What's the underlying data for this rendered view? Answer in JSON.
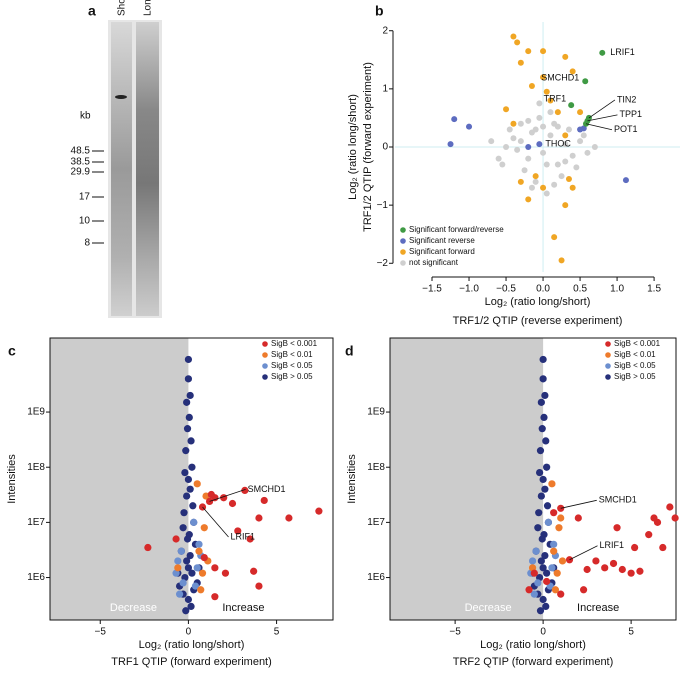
{
  "gel": {
    "panel_label": "a",
    "lanes": [
      "Short",
      "Long"
    ],
    "unit": "kb",
    "markers": [
      "48.5",
      "38.5",
      "29.9",
      "17",
      "10",
      "8"
    ]
  },
  "chart_data": [
    {
      "type": "scatter",
      "panel_label": "b",
      "xlabel": [
        "Log₂ (ratio long/short)",
        "TRF1/2 QTIP (reverse experiment)"
      ],
      "ylabel": [
        "Log₂ (ratio long/short)",
        "TRF1/2 QTIP (forward experiment)"
      ],
      "xlim": [
        -2,
        1.85
      ],
      "ylim": [
        -2.15,
        2.15
      ],
      "xticks": [
        {
          "value": -1.5,
          "label": "−1.5"
        },
        {
          "value": -1,
          "label": "−1.0"
        },
        {
          "value": -0.5,
          "label": "−0.5"
        },
        {
          "value": 0,
          "label": "0.0"
        },
        0.5,
        {
          "value": 1,
          "label": "1.0"
        },
        1.5
      ],
      "yticks": [
        {
          "value": -2,
          "label": "−2"
        },
        {
          "value": -1,
          "label": "−1"
        },
        0,
        1,
        2
      ],
      "zero_lines": true,
      "zero_line_color": "#cfeef2",
      "legend": "lower left",
      "series": [
        {
          "name": "Significant forward/reverse",
          "color": "#3f9a44",
          "x": [
            0.8,
            0.57,
            0.38,
            0.62,
            0.6,
            0.58
          ],
          "values": [
            1.62,
            1.13,
            0.72,
            0.5,
            0.45,
            0.4
          ],
          "labels": [
            "LRIF1",
            "SMCHD1",
            "TRF1",
            "TIN2",
            "TPP1",
            "POT1"
          ]
        },
        {
          "name": "Significant reverse",
          "color": "#5d6cc0",
          "x": [
            -1.2,
            -1.25,
            -1.0,
            1.12,
            0.5,
            -0.05,
            -0.2,
            0.55
          ],
          "values": [
            0.48,
            0.05,
            0.35,
            -0.57,
            0.3,
            0.05,
            0.0,
            0.32
          ],
          "labels": [
            null,
            null,
            null,
            null,
            null,
            "THOC",
            null,
            null
          ]
        },
        {
          "name": "Significant forward",
          "color": "#f0a624",
          "x": [
            -0.4,
            -0.35,
            -0.2,
            0.0,
            0.3,
            -0.3,
            0.4,
            0.0,
            -0.15,
            0.05,
            0.1,
            -0.5,
            0.2,
            0.5,
            -0.4,
            0.3,
            -0.1,
            0.0,
            0.35,
            -0.2,
            0.3,
            0.4,
            -0.3,
            0.25,
            0.15
          ],
          "values": [
            1.9,
            1.8,
            1.65,
            1.65,
            1.55,
            1.45,
            1.3,
            1.2,
            1.05,
            0.95,
            0.8,
            0.65,
            0.6,
            0.6,
            0.4,
            0.2,
            -0.5,
            -0.7,
            -0.55,
            -0.9,
            -1.0,
            -0.7,
            -0.6,
            -1.95,
            -1.55
          ]
        },
        {
          "name": "not significant",
          "color": "#cfcfcf",
          "x": [
            -0.3,
            -0.2,
            -0.1,
            0,
            0.1,
            0.2,
            0.3,
            -0.4,
            0.4,
            -0.25,
            0.15,
            -0.05,
            0.25,
            -0.35,
            0.05,
            -0.15,
            0.35,
            -0.5,
            0.5,
            -0.6,
            0.6,
            -0.1,
            0.1,
            0.2,
            -0.2,
            0,
            0.45,
            -0.45,
            0.3,
            -0.3,
            0.7,
            -0.7,
            0.05,
            -0.05,
            0.15,
            -0.15,
            0.55,
            -0.55
          ],
          "values": [
            0.1,
            -0.2,
            0.3,
            -0.1,
            0.2,
            -0.3,
            0.05,
            0.15,
            -0.15,
            -0.4,
            0.4,
            0.5,
            -0.5,
            -0.05,
            -0.3,
            0.25,
            0.3,
            0,
            0.1,
            -0.2,
            -0.1,
            -0.6,
            0.6,
            0.35,
            0.45,
            0.35,
            -0.35,
            0.3,
            -0.25,
            0.4,
            0,
            0.1,
            -0.8,
            0.75,
            -0.65,
            -0.7,
            0.2,
            -0.3
          ]
        }
      ]
    },
    {
      "type": "scatter",
      "panel_label": "c",
      "xlabel": [
        "Log₂ (ratio long/short)",
        "TRF1 QTIP (forward experiment)"
      ],
      "ylabel": [
        "Intensities"
      ],
      "xlim": [
        -7.85,
        8.2
      ],
      "ylim": [
        170000,
        22000000000
      ],
      "ylog": true,
      "shade_x_max": 0,
      "shade_color": "#cccccc",
      "annotations": [
        "Decrease",
        "Increase"
      ],
      "xticks": [
        {
          "value": -5,
          "label": "−5"
        },
        0,
        5
      ],
      "yticks": [
        {
          "value": 1000000,
          "label": "1E6"
        },
        {
          "value": 10000000,
          "label": "1E7"
        },
        {
          "value": 100000000,
          "label": "1E8"
        },
        {
          "value": 1000000000,
          "label": "1E9"
        }
      ],
      "legend": "upper right",
      "series": [
        {
          "name": "SigB < 0.001",
          "color": "#d62a2a",
          "x": [
            1.2,
            0.8,
            1.3,
            1.5,
            2,
            2.5,
            3.2,
            4.3,
            4,
            5.7,
            7.4,
            2.8,
            3.5,
            -0.7,
            -2.3,
            1.5,
            2.1,
            3.7,
            4,
            1.5,
            0.9
          ],
          "values": [
            24000000.0,
            19000000.0,
            32000000.0,
            28000000.0,
            28000000.0,
            22000000.0,
            38000000.0,
            25000000.0,
            12000000.0,
            12000000.0,
            16000000.0,
            7000000.0,
            5000000.0,
            5000000.0,
            3500000.0,
            1500000.0,
            1200000.0,
            1300000.0,
            700000.0,
            450000.0,
            2300000.0
          ],
          "labels": [
            "SMCHD1",
            "LRIF1",
            null,
            null,
            null,
            null,
            null,
            null,
            null,
            null,
            null,
            null,
            null,
            null,
            null,
            null,
            null,
            null,
            null,
            null,
            null
          ]
        },
        {
          "name": "SigB < 0.01",
          "color": "#ee7b2c",
          "x": [
            0.6,
            0.8,
            1,
            0.9,
            -0.6,
            0.7,
            1.1,
            0.5
          ],
          "values": [
            3000000.0,
            1200000.0,
            30000000.0,
            8000000.0,
            1500000.0,
            600000.0,
            2000000.0,
            50000000.0
          ]
        },
        {
          "name": "SigB < 0.05",
          "color": "#6c8fcf",
          "x": [
            -0.6,
            -0.4,
            0.5,
            0.7,
            -0.3,
            0.4,
            -0.7,
            0.6,
            -0.5,
            0.3
          ],
          "values": [
            2000000.0,
            3000000.0,
            1500000.0,
            2500000.0,
            800000.0,
            700000.0,
            1200000.0,
            4000000.0,
            500000.0,
            10000000.0
          ]
        },
        {
          "name": "SigB > 0.05",
          "color": "#26307a",
          "x": [
            0,
            0.1,
            -0.1,
            0.05,
            -0.05,
            0.15,
            -0.15,
            0.2,
            -0.2,
            0,
            0.1,
            -0.1,
            0.25,
            -0.25,
            0.3,
            -0.3,
            0.05,
            -0.05,
            0.4,
            -0.4,
            0.1,
            -0.1,
            0,
            0.2,
            -0.2,
            0.5,
            -0.5,
            0.3,
            -0.3,
            0,
            0.15,
            -0.15,
            0.6,
            -0.6,
            0
          ],
          "values": [
            4000000000.0,
            2000000000.0,
            1500000000.0,
            800000000.0,
            500000000.0,
            300000000.0,
            200000000.0,
            100000000.0,
            80000000.0,
            60000000.0,
            40000000.0,
            30000000.0,
            20000000.0,
            15000000.0,
            10000000.0,
            8000000.0,
            6000000.0,
            5000000.0,
            4000000.0,
            3000000.0,
            2500000.0,
            2000000.0,
            1500000.0,
            1200000.0,
            1000000.0,
            800000.0,
            700000.0,
            600000.0,
            500000.0,
            400000.0,
            300000.0,
            250000.0,
            1500000.0,
            1200000.0,
            9000000000.0
          ]
        }
      ]
    },
    {
      "type": "scatter",
      "panel_label": "d",
      "xlabel": [
        "Log₂ (ratio long/short)",
        "TRF2 QTIP (forward experiment)"
      ],
      "ylabel": [
        "Intensities"
      ],
      "xlim": [
        -8.7,
        7.55
      ],
      "ylim": [
        170000,
        22000000000
      ],
      "ylog": true,
      "shade_x_max": 0,
      "shade_color": "#cccccc",
      "annotations": [
        "Decrease",
        "Increase"
      ],
      "xticks": [
        {
          "value": -5,
          "label": "−5"
        },
        0,
        5
      ],
      "yticks": [
        {
          "value": 1000000,
          "label": "1E6"
        },
        {
          "value": 10000000,
          "label": "1E7"
        },
        {
          "value": 100000000,
          "label": "1E8"
        },
        {
          "value": 1000000000,
          "label": "1E9"
        }
      ],
      "legend": "upper right",
      "series": [
        {
          "name": "SigB < 0.001",
          "color": "#d62a2a",
          "x": [
            1.0,
            1.5,
            0.6,
            2,
            2.5,
            3,
            3.5,
            4,
            4.5,
            5,
            5.5,
            6,
            6.3,
            6.5,
            7.2,
            7.5,
            6.8,
            5.2,
            4.2,
            1,
            -0.8,
            -0.5,
            0.2,
            2.3
          ],
          "values": [
            18000000.0,
            2100000.0,
            15000000.0,
            12000000.0,
            1400000.0,
            2000000.0,
            1500000.0,
            1800000.0,
            1400000.0,
            1200000.0,
            1300000.0,
            6000000.0,
            12000000.0,
            10000000.0,
            19000000.0,
            12000000.0,
            3500000.0,
            3500000.0,
            8000000.0,
            500000.0,
            600000.0,
            1200000.0,
            850000.0,
            600000.0
          ],
          "labels": [
            "SMCHD1",
            "LRIF1",
            null,
            null,
            null,
            null,
            null,
            null,
            null,
            null,
            null,
            null,
            null,
            null,
            null,
            null,
            null,
            null,
            null,
            null,
            null,
            null,
            null,
            null
          ]
        },
        {
          "name": "SigB < 0.01",
          "color": "#ee7b2c",
          "x": [
            0.6,
            0.8,
            1,
            0.9,
            -0.6,
            0.7,
            1.1,
            0.5
          ],
          "values": [
            3000000.0,
            1200000.0,
            12000000.0,
            8000000.0,
            1500000.0,
            600000.0,
            2000000.0,
            50000000.0
          ]
        },
        {
          "name": "SigB < 0.05",
          "color": "#6c8fcf",
          "x": [
            -0.6,
            -0.4,
            0.5,
            0.7,
            -0.3,
            0.4,
            -0.7,
            0.6,
            -0.5,
            0.3
          ],
          "values": [
            2000000.0,
            3000000.0,
            1500000.0,
            2500000.0,
            800000.0,
            700000.0,
            1200000.0,
            4000000.0,
            500000.0,
            10000000.0
          ]
        },
        {
          "name": "SigB > 0.05",
          "color": "#26307a",
          "x": [
            0,
            0.1,
            -0.1,
            0.05,
            -0.05,
            0.15,
            -0.15,
            0.2,
            -0.2,
            0,
            0.1,
            -0.1,
            0.25,
            -0.25,
            0.3,
            -0.3,
            0.05,
            -0.05,
            0.4,
            -0.4,
            0.1,
            -0.1,
            0,
            0.2,
            -0.2,
            0.5,
            -0.5,
            0.3,
            -0.3,
            0,
            0.15,
            -0.15,
            0.6,
            -0.6,
            0
          ],
          "values": [
            4000000000.0,
            2000000000.0,
            1500000000.0,
            800000000.0,
            500000000.0,
            300000000.0,
            200000000.0,
            100000000.0,
            80000000.0,
            60000000.0,
            40000000.0,
            30000000.0,
            20000000.0,
            15000000.0,
            10000000.0,
            8000000.0,
            6000000.0,
            5000000.0,
            4000000.0,
            3000000.0,
            2500000.0,
            2000000.0,
            1500000.0,
            1200000.0,
            1000000.0,
            800000.0,
            700000.0,
            600000.0,
            500000.0,
            400000.0,
            300000.0,
            250000.0,
            1500000.0,
            1200000.0,
            9000000000.0
          ]
        }
      ]
    }
  ]
}
